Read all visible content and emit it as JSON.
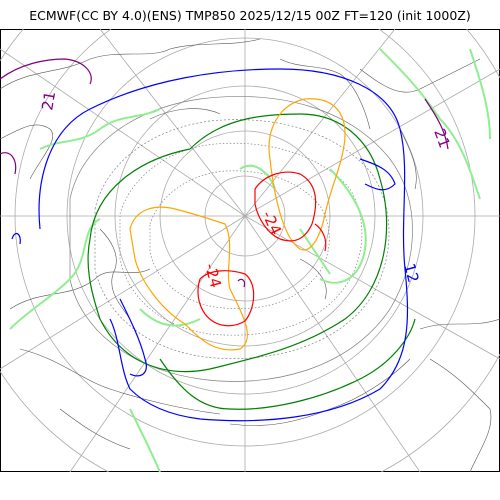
{
  "title": "ECMWF(CC BY 4.0)(ENS) TMP850 2025/12/15 00Z FT=120 (init 1000Z)",
  "contour_labels": [
    {
      "text": "21",
      "color": "#800080"
    },
    {
      "text": "21",
      "color": "#800080"
    },
    {
      "text": "-24",
      "color": "#ff0000"
    },
    {
      "text": "-24",
      "color": "#ff0000"
    },
    {
      "text": "12",
      "color": "#0000ff"
    }
  ],
  "colors": {
    "coastline": "#555555",
    "grid": "#aaaaaa",
    "contour_purple": "#800080",
    "contour_blue": "#0000ff",
    "contour_green": "#008000",
    "contour_lightgreen": "#90ee90",
    "contour_orange": "#ffa500",
    "contour_red": "#ff0000",
    "contour_gray": "#808080"
  }
}
